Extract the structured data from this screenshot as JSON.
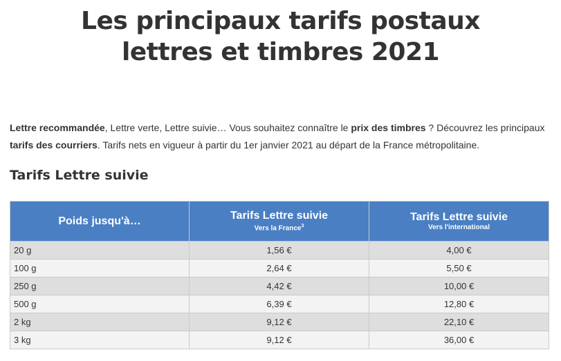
{
  "header": {
    "title_lines": [
      "Les principaux tarifs postaux",
      "lettres et timbres 2021"
    ]
  },
  "intro": [
    {
      "text": "Lettre recommandée",
      "bold": true
    },
    {
      "text": ", Lettre verte, Lettre suivie… Vous souhaitez connaître le ",
      "bold": false
    },
    {
      "text": "prix des timbres",
      "bold": true
    },
    {
      "text": " ? Découvrez les principaux ",
      "bold": false
    },
    {
      "text": "tarifs des courriers",
      "bold": true
    },
    {
      "text": ". Tarifs nets en vigueur à partir du 1er janvier 2021 au départ de la France métropolitaine.",
      "bold": false
    }
  ],
  "section_title": "Tarifs Lettre suivie",
  "table": {
    "columns": [
      {
        "label": "Poids jusqu'à…"
      },
      {
        "label": "Tarifs Lettre suivie",
        "sub": "Vers la France",
        "sup": "3"
      },
      {
        "label": "Tarifs Lettre suivie",
        "sub": "Vers l'international"
      }
    ],
    "rows": [
      [
        "20 g",
        "1,56 €",
        "4,00 €"
      ],
      [
        "100 g",
        "2,64 €",
        "5,50 €"
      ],
      [
        "250 g",
        "4,42 €",
        "10,00 €"
      ],
      [
        "500 g",
        "6,39 €",
        "12,80 €"
      ],
      [
        "2 kg",
        "9,12 €",
        "22,10 €"
      ],
      [
        "3 kg",
        "9,12 €",
        "36,00 €"
      ]
    ]
  }
}
